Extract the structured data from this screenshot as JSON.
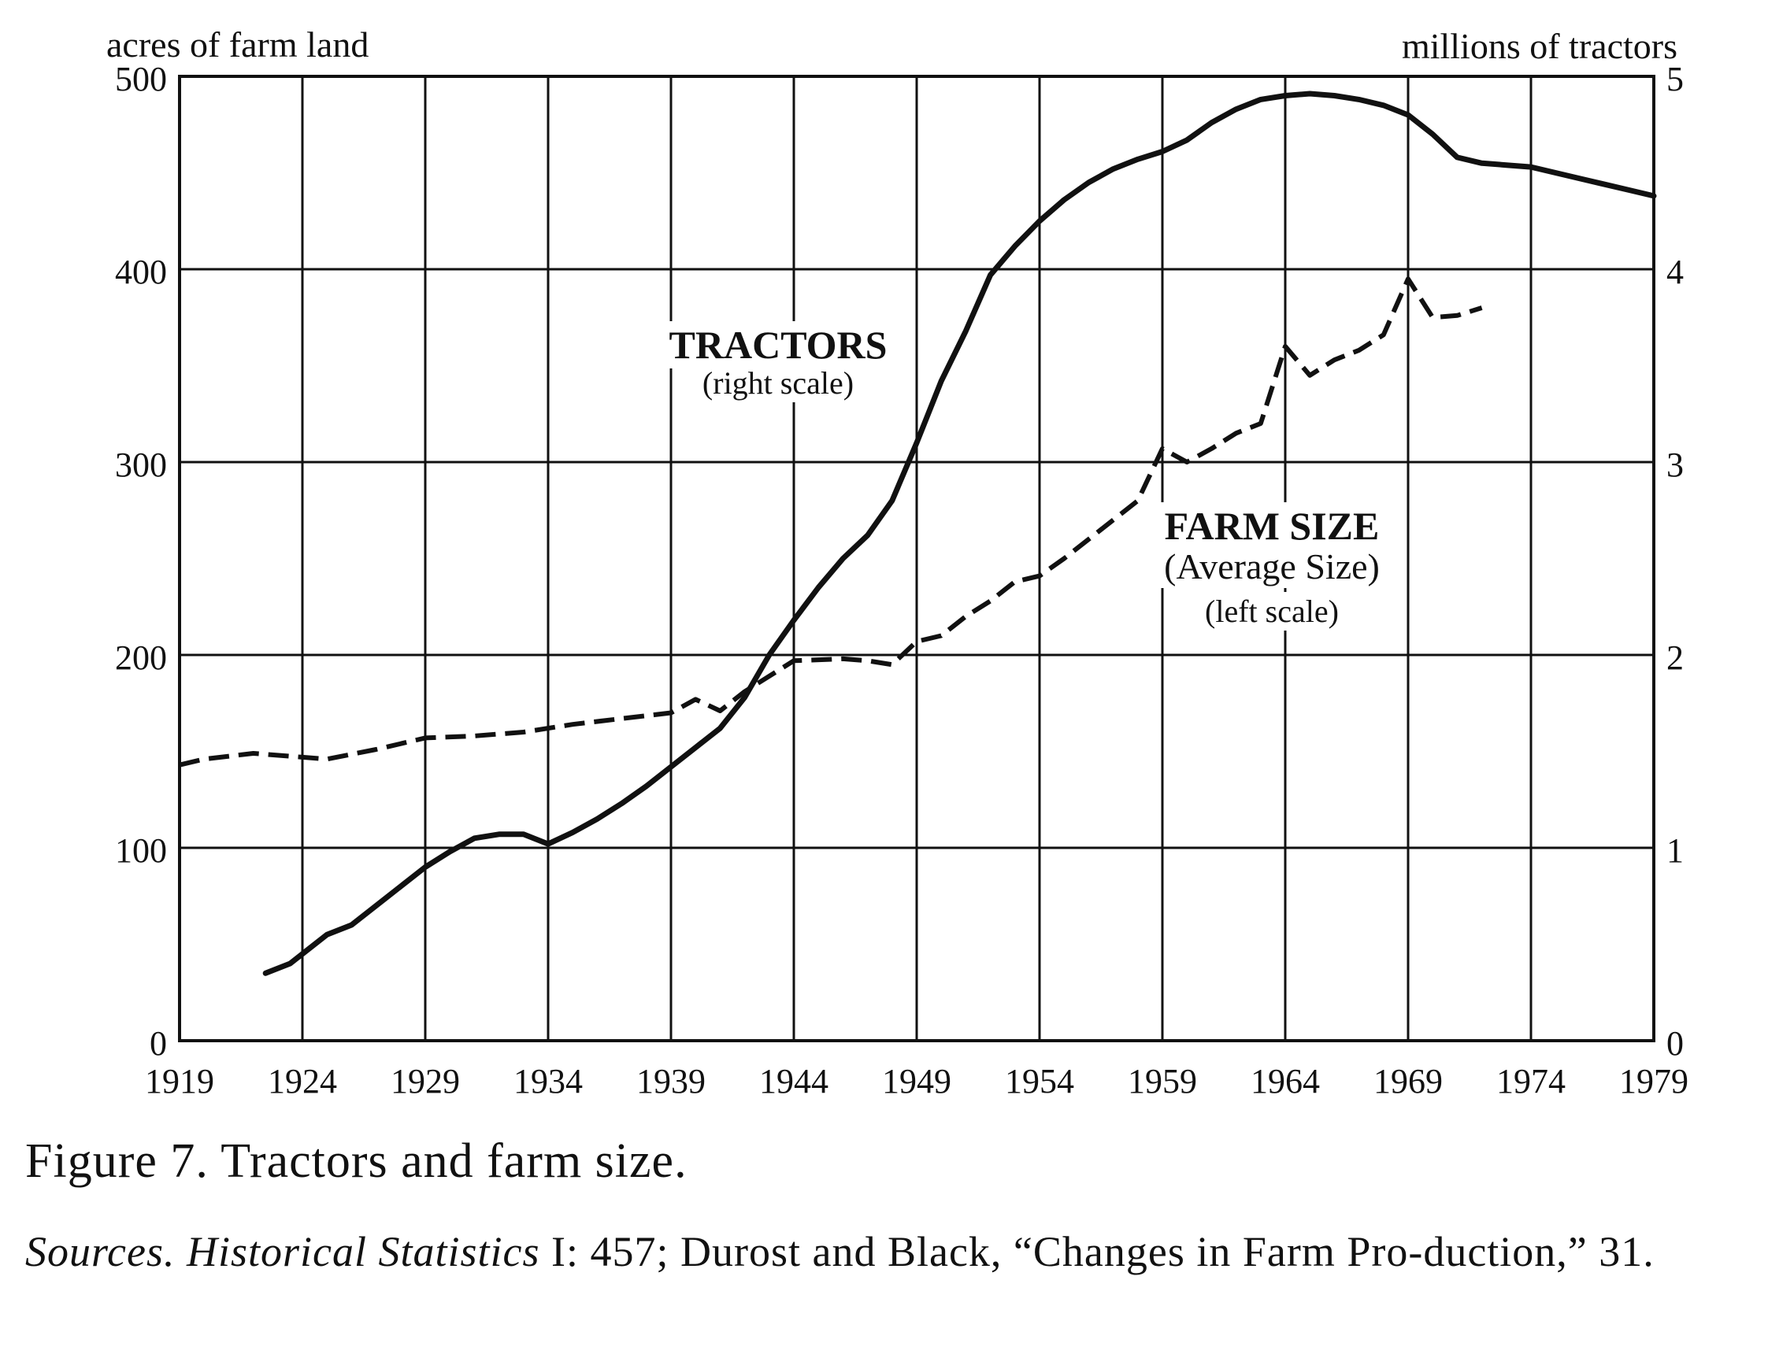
{
  "caption": "Figure 7. Tractors and farm size.",
  "sources": {
    "label": "Sources.",
    "title": "Historical Statistics",
    "text": " I: 457; Durost and Black, “Changes in Farm Pro-duction,” 31."
  },
  "chart_data": {
    "type": "line",
    "ylabel_left": "acres of farm land",
    "ylabel_right": "millions of tractors",
    "xlim": [
      1919,
      1979
    ],
    "ylim_left": [
      0,
      500
    ],
    "ylim_right": [
      0,
      5
    ],
    "x_ticks": [
      "1919",
      "1924",
      "1929",
      "1934",
      "1939",
      "1944",
      "1949",
      "1954",
      "1959",
      "1964",
      "1969",
      "1974",
      "1979"
    ],
    "y_ticks_left": [
      "0",
      "100",
      "200",
      "300",
      "400",
      "500"
    ],
    "y_ticks_right": [
      "0",
      "1",
      "2",
      "3",
      "4",
      "5"
    ],
    "grid": true,
    "annotations": [
      {
        "text": "TRACTORS",
        "style": "bold"
      },
      {
        "text": "(right scale)",
        "style": "small"
      },
      {
        "text": "FARM SIZE",
        "style": "bold"
      },
      {
        "text": "(Average Size)",
        "style": "medium"
      },
      {
        "text": "(left scale)",
        "style": "small"
      }
    ],
    "series": [
      {
        "name": "TRACTORS",
        "scale": "right",
        "style": "solid",
        "x": [
          1922.5,
          1923.5,
          1925,
          1926,
          1927,
          1928,
          1929,
          1930,
          1931,
          1932,
          1933,
          1934,
          1935,
          1936,
          1937,
          1938,
          1939,
          1940,
          1941,
          1942,
          1943,
          1944,
          1945,
          1946,
          1947,
          1948,
          1949,
          1950,
          1951,
          1952,
          1953,
          1954,
          1955,
          1956,
          1957,
          1958,
          1959,
          1960,
          1961,
          1962,
          1963,
          1964,
          1965,
          1966,
          1967,
          1968,
          1969,
          1970,
          1971,
          1972,
          1973,
          1974,
          1975,
          1976,
          1977,
          1978,
          1979
        ],
        "values": [
          0.35,
          0.4,
          0.55,
          0.6,
          0.7,
          0.8,
          0.9,
          0.98,
          1.05,
          1.07,
          1.07,
          1.02,
          1.08,
          1.15,
          1.23,
          1.32,
          1.42,
          1.52,
          1.62,
          1.78,
          2.0,
          2.18,
          2.35,
          2.5,
          2.62,
          2.8,
          3.1,
          3.42,
          3.68,
          3.97,
          4.12,
          4.25,
          4.36,
          4.45,
          4.52,
          4.57,
          4.61,
          4.67,
          4.76,
          4.83,
          4.88,
          4.9,
          4.91,
          4.9,
          4.88,
          4.85,
          4.8,
          4.7,
          4.58,
          4.55,
          4.54,
          4.53,
          4.5,
          4.47,
          4.44,
          4.41,
          4.38
        ]
      },
      {
        "name": "FARM SIZE",
        "scale": "left",
        "style": "dashed",
        "x": [
          1919,
          1920,
          1922,
          1925,
          1927,
          1929,
          1931,
          1933,
          1935,
          1937,
          1939,
          1940,
          1941,
          1942,
          1944,
          1946,
          1947,
          1948,
          1949,
          1950,
          1951,
          1952,
          1953,
          1954,
          1955,
          1956,
          1957,
          1958,
          1959,
          1960,
          1961,
          1962,
          1963,
          1964,
          1965,
          1966,
          1967,
          1968,
          1969,
          1970,
          1971,
          1972
        ],
        "values": [
          143,
          146,
          149,
          146,
          151,
          157,
          158,
          160,
          164,
          167,
          170,
          177,
          171,
          181,
          197,
          198,
          197,
          195,
          207,
          210,
          220,
          228,
          238,
          241,
          250,
          260,
          270,
          280,
          307,
          300,
          307,
          315,
          320,
          360,
          345,
          353,
          358,
          366,
          395,
          375,
          376,
          380
        ]
      }
    ]
  }
}
